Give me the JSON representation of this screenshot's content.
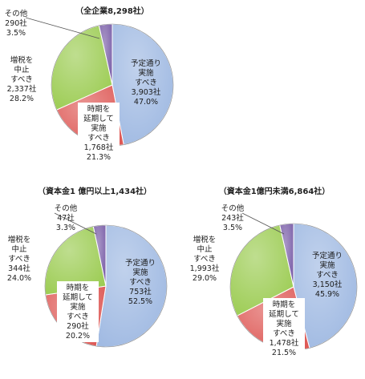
{
  "chart_data": [
    {
      "type": "pie",
      "title": "（全企業8,298社）",
      "slices": [
        {
          "label": [
            "予定通り",
            "実施",
            "すべき"
          ],
          "count": "3,903社",
          "percent": 47.0,
          "percent_label": "47.0%",
          "color": "#9fb9e2"
        },
        {
          "label": [
            "時期を",
            "延期して",
            "実施",
            "すべき"
          ],
          "count": "1,768社",
          "percent": 21.3,
          "percent_label": "21.3%",
          "color": "#de5a57"
        },
        {
          "label": [
            "増税を",
            "中止",
            "すべき"
          ],
          "count": "2,337社",
          "percent": 28.2,
          "percent_label": "28.2%",
          "color": "#9ccc53"
        },
        {
          "label": [
            "その他"
          ],
          "count": "290社",
          "percent": 3.5,
          "percent_label": "3.5%",
          "color": "#7a5ea8"
        }
      ]
    },
    {
      "type": "pie",
      "title": "（資本金1 億円以上1,434社）",
      "slices": [
        {
          "label": [
            "予定通り",
            "実施",
            "すべき"
          ],
          "count": "753社",
          "percent": 52.5,
          "percent_label": "52.5%",
          "color": "#9fb9e2"
        },
        {
          "label": [
            "時期を",
            "延期して",
            "実施",
            "すべき"
          ],
          "count": "290社",
          "percent": 20.2,
          "percent_label": "20.2%",
          "color": "#de5a57"
        },
        {
          "label": [
            "増税を",
            "中止",
            "すべき"
          ],
          "count": "344社",
          "percent": 24.0,
          "percent_label": "24.0%",
          "color": "#9ccc53"
        },
        {
          "label": [
            "その他"
          ],
          "count": "47社",
          "percent": 3.3,
          "percent_label": "3.3%",
          "color": "#7a5ea8"
        }
      ]
    },
    {
      "type": "pie",
      "title": "（資本金1億円未満6,864社）",
      "slices": [
        {
          "label": [
            "予定通り",
            "実施",
            "すべき"
          ],
          "count": "3,150社",
          "percent": 45.9,
          "percent_label": "45.9%",
          "color": "#9fb9e2"
        },
        {
          "label": [
            "時期を",
            "延期して",
            "実施",
            "すべき"
          ],
          "count": "1,478社",
          "percent": 21.5,
          "percent_label": "21.5%",
          "color": "#de5a57"
        },
        {
          "label": [
            "増税を",
            "中止",
            "すべき"
          ],
          "count": "1,993社",
          "percent": 29.0,
          "percent_label": "29.0%",
          "color": "#9ccc53"
        },
        {
          "label": [
            "その他"
          ],
          "count": "243社",
          "percent": 3.5,
          "percent_label": "3.5%",
          "color": "#7a5ea8"
        }
      ]
    }
  ]
}
